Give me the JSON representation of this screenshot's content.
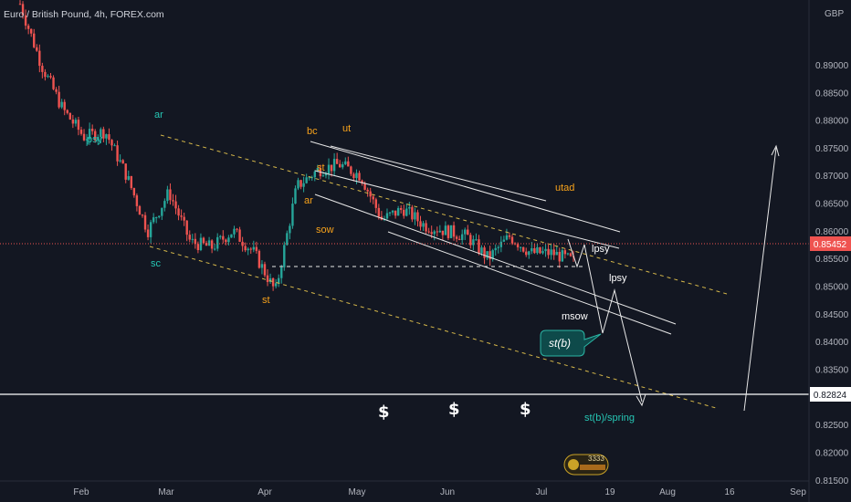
{
  "window": {
    "title": "Euro / British Pound, 4h, FOREX.com",
    "currency": "GBP"
  },
  "colors": {
    "background": "#131722",
    "up": "#26a69a",
    "down": "#ef5350",
    "orange_label": "#f7a21b",
    "teal_label": "#26c6b4",
    "white": "#ffffff",
    "channel_dashed": "#d6b84a"
  },
  "chart_data": {
    "type": "line",
    "title": "Euro / British Pound, 4h, FOREX.com",
    "ylim": [
      0.8148,
      0.9017
    ],
    "y_ticks": [
      "0.89000",
      "0.88500",
      "0.88000",
      "0.87500",
      "0.87000",
      "0.86500",
      "0.86000",
      "0.85500",
      "0.85000",
      "0.84500",
      "0.84000",
      "0.83500",
      "0.83000",
      "0.82500",
      "0.82000",
      "0.81500"
    ],
    "x_ticks": [
      "Feb",
      "Mar",
      "Apr",
      "May",
      "Jun",
      "Jul",
      "19",
      "Aug",
      "16",
      "Sep"
    ],
    "current_price": "0.85452",
    "horizontal_level": "0.82824",
    "series": [
      {
        "x": [
          "Jan 15",
          "Jan 22",
          "Jan 29",
          "Feb 5",
          "Feb 12",
          "Feb 18",
          "Feb 24",
          "Feb 28",
          "Mar 4",
          "Mar 10",
          "Mar 17",
          "Mar 24",
          "Apr 1",
          "Apr 7",
          "Apr 14",
          "Apr 21",
          "Apr 28",
          "May 6",
          "May 13",
          "May 20",
          "May 27",
          "Jun 3",
          "Jun 10",
          "Jun 17",
          "Jun 24",
          "Jul 1",
          "Jul 7"
        ],
        "y": [
          0.901,
          0.89,
          0.882,
          0.877,
          0.878,
          0.87,
          0.86,
          0.867,
          0.858,
          0.857,
          0.86,
          0.856,
          0.849,
          0.868,
          0.871,
          0.872,
          0.87,
          0.862,
          0.864,
          0.861,
          0.86,
          0.859,
          0.855,
          0.859,
          0.856,
          0.856,
          0.8545
        ]
      }
    ],
    "annotations": {
      "orange": [
        "ar",
        "bc",
        "ut",
        "st",
        "ar",
        "sow",
        "st",
        "utad",
        "$",
        "$",
        "$"
      ],
      "teal": [
        "psy",
        "sc",
        "st(b)/spring"
      ],
      "white": [
        "lpsy",
        "lpsy",
        "msow"
      ],
      "callout": "st(b)"
    },
    "badge": "3333"
  }
}
